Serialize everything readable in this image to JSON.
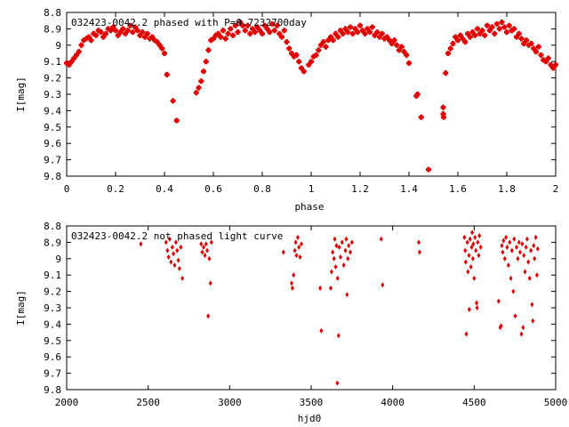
{
  "chart_data": [
    {
      "type": "scatter",
      "title": "032423-0042.2 phased with P=0.7232700day",
      "xlabel": "phase",
      "ylabel": "I[mag]",
      "xlim": [
        0,
        2
      ],
      "ylim": [
        8.8,
        9.8
      ],
      "y_inverted": true,
      "xticks": [
        "0",
        "0.2",
        "0.4",
        "0.6",
        "0.8",
        "1",
        "1.2",
        "1.4",
        "1.6",
        "1.8",
        "2"
      ],
      "yticks": [
        "8.8",
        "8.9",
        "9",
        "9.1",
        "9.2",
        "9.3",
        "9.4",
        "9.5",
        "9.6",
        "9.7",
        "9.8"
      ],
      "grid": false,
      "marker_color": "#e00000",
      "points": [
        [
          0.0,
          9.11
        ],
        [
          0.01,
          9.12
        ],
        [
          0.02,
          9.1
        ],
        [
          0.03,
          9.08
        ],
        [
          0.04,
          9.06
        ],
        [
          0.05,
          9.04
        ],
        [
          0.06,
          9.0
        ],
        [
          0.07,
          8.97
        ],
        [
          0.08,
          8.96
        ],
        [
          0.09,
          8.95
        ],
        [
          0.1,
          8.97
        ],
        [
          0.11,
          8.93
        ],
        [
          0.12,
          8.94
        ],
        [
          0.13,
          8.91
        ],
        [
          0.14,
          8.92
        ],
        [
          0.15,
          8.95
        ],
        [
          0.16,
          8.93
        ],
        [
          0.17,
          8.9
        ],
        [
          0.18,
          8.91
        ],
        [
          0.19,
          8.89
        ],
        [
          0.2,
          8.91
        ],
        [
          0.21,
          8.94
        ],
        [
          0.22,
          8.92
        ],
        [
          0.23,
          8.9
        ],
        [
          0.24,
          8.93
        ],
        [
          0.25,
          8.91
        ],
        [
          0.26,
          8.88
        ],
        [
          0.27,
          8.92
        ],
        [
          0.28,
          8.89
        ],
        [
          0.29,
          8.91
        ],
        [
          0.3,
          8.94
        ],
        [
          0.31,
          8.92
        ],
        [
          0.32,
          8.95
        ],
        [
          0.33,
          8.93
        ],
        [
          0.34,
          8.96
        ],
        [
          0.35,
          8.95
        ],
        [
          0.36,
          8.97
        ],
        [
          0.37,
          8.98
        ],
        [
          0.38,
          9.0
        ],
        [
          0.39,
          9.02
        ],
        [
          0.4,
          9.05
        ],
        [
          0.41,
          9.18
        ],
        [
          0.435,
          9.34
        ],
        [
          0.45,
          9.46
        ],
        [
          0.53,
          9.29
        ],
        [
          0.54,
          9.26
        ],
        [
          0.55,
          9.22
        ],
        [
          0.56,
          9.16
        ],
        [
          0.57,
          9.1
        ],
        [
          0.58,
          9.03
        ],
        [
          0.59,
          8.97
        ],
        [
          0.6,
          8.96
        ],
        [
          0.61,
          8.94
        ],
        [
          0.62,
          8.93
        ],
        [
          0.63,
          8.95
        ],
        [
          0.64,
          8.91
        ],
        [
          0.65,
          8.96
        ],
        [
          0.66,
          8.93
        ],
        [
          0.67,
          8.9
        ],
        [
          0.68,
          8.94
        ],
        [
          0.69,
          8.88
        ],
        [
          0.7,
          8.92
        ],
        [
          0.71,
          8.86
        ],
        [
          0.72,
          8.88
        ],
        [
          0.73,
          8.91
        ],
        [
          0.74,
          8.88
        ],
        [
          0.75,
          8.93
        ],
        [
          0.76,
          8.9
        ],
        [
          0.77,
          8.92
        ],
        [
          0.78,
          8.89
        ],
        [
          0.79,
          8.91
        ],
        [
          0.8,
          8.93
        ],
        [
          0.81,
          8.88
        ],
        [
          0.82,
          8.9
        ],
        [
          0.83,
          8.92
        ],
        [
          0.84,
          8.87
        ],
        [
          0.85,
          8.91
        ],
        [
          0.86,
          8.88
        ],
        [
          0.87,
          8.93
        ],
        [
          0.88,
          8.95
        ],
        [
          0.89,
          8.91
        ],
        [
          0.9,
          8.98
        ],
        [
          0.91,
          9.02
        ],
        [
          0.92,
          9.05
        ],
        [
          0.93,
          9.07
        ],
        [
          0.94,
          9.06
        ],
        [
          0.95,
          9.1
        ],
        [
          0.96,
          9.14
        ],
        [
          0.97,
          9.16
        ],
        [
          0.99,
          9.12
        ],
        [
          1.0,
          9.1
        ],
        [
          1.01,
          9.07
        ],
        [
          1.02,
          9.06
        ],
        [
          1.03,
          9.03
        ],
        [
          1.04,
          9.0
        ],
        [
          1.05,
          8.98
        ],
        [
          1.06,
          9.01
        ],
        [
          1.07,
          8.97
        ],
        [
          1.08,
          8.95
        ],
        [
          1.09,
          8.97
        ],
        [
          1.1,
          8.93
        ],
        [
          1.11,
          8.95
        ],
        [
          1.12,
          8.91
        ],
        [
          1.13,
          8.93
        ],
        [
          1.14,
          8.9
        ],
        [
          1.15,
          8.92
        ],
        [
          1.16,
          8.89
        ],
        [
          1.17,
          8.93
        ],
        [
          1.18,
          8.9
        ],
        [
          1.19,
          8.92
        ],
        [
          1.2,
          8.88
        ],
        [
          1.21,
          8.91
        ],
        [
          1.22,
          8.93
        ],
        [
          1.23,
          8.9
        ],
        [
          1.24,
          8.92
        ],
        [
          1.25,
          8.89
        ],
        [
          1.26,
          8.94
        ],
        [
          1.27,
          8.92
        ],
        [
          1.28,
          8.95
        ],
        [
          1.29,
          8.93
        ],
        [
          1.3,
          8.96
        ],
        [
          1.31,
          8.95
        ],
        [
          1.32,
          8.97
        ],
        [
          1.33,
          8.99
        ],
        [
          1.34,
          8.97
        ],
        [
          1.35,
          9.0
        ],
        [
          1.36,
          9.03
        ],
        [
          1.37,
          9.01
        ],
        [
          1.38,
          9.04
        ],
        [
          1.39,
          9.06
        ],
        [
          1.4,
          9.11
        ],
        [
          1.43,
          9.31
        ],
        [
          1.435,
          9.3
        ],
        [
          1.45,
          9.44
        ],
        [
          1.48,
          9.76
        ],
        [
          1.54,
          9.42
        ],
        [
          1.542,
          9.44
        ],
        [
          1.54,
          9.38
        ],
        [
          1.55,
          9.17
        ],
        [
          1.56,
          9.05
        ],
        [
          1.57,
          9.02
        ],
        [
          1.58,
          8.99
        ],
        [
          1.59,
          8.95
        ],
        [
          1.6,
          8.97
        ],
        [
          1.61,
          8.94
        ],
        [
          1.62,
          8.96
        ],
        [
          1.63,
          8.98
        ],
        [
          1.64,
          8.93
        ],
        [
          1.65,
          8.95
        ],
        [
          1.66,
          8.92
        ],
        [
          1.67,
          8.94
        ],
        [
          1.68,
          8.9
        ],
        [
          1.69,
          8.93
        ],
        [
          1.7,
          8.91
        ],
        [
          1.71,
          8.94
        ],
        [
          1.72,
          8.88
        ],
        [
          1.73,
          8.91
        ],
        [
          1.74,
          8.89
        ],
        [
          1.75,
          8.93
        ],
        [
          1.76,
          8.87
        ],
        [
          1.77,
          8.9
        ],
        [
          1.78,
          8.86
        ],
        [
          1.79,
          8.89
        ],
        [
          1.8,
          8.92
        ],
        [
          1.81,
          8.88
        ],
        [
          1.82,
          8.91
        ],
        [
          1.83,
          8.9
        ],
        [
          1.84,
          8.95
        ],
        [
          1.85,
          8.93
        ],
        [
          1.86,
          8.96
        ],
        [
          1.87,
          8.99
        ],
        [
          1.88,
          8.97
        ],
        [
          1.89,
          9.0
        ],
        [
          1.9,
          8.99
        ],
        [
          1.91,
          9.02
        ],
        [
          1.92,
          9.04
        ],
        [
          1.93,
          9.01
        ],
        [
          1.94,
          9.06
        ],
        [
          1.95,
          9.09
        ],
        [
          1.96,
          9.1
        ],
        [
          1.97,
          9.08
        ],
        [
          1.98,
          9.12
        ],
        [
          1.99,
          9.14
        ],
        [
          2.0,
          9.12
        ]
      ]
    },
    {
      "type": "scatter",
      "title": "032423-0042.2 not phased light curve",
      "xlabel": "hjd0",
      "ylabel": "I[mag]",
      "xlim": [
        2000,
        5000
      ],
      "ylim": [
        8.8,
        9.8
      ],
      "y_inverted": true,
      "xticks": [
        "2000",
        "2500",
        "3000",
        "3500",
        "4000",
        "4500",
        "5000"
      ],
      "yticks": [
        "8.8",
        "8.9",
        "9",
        "9.1",
        "9.2",
        "9.3",
        "9.4",
        "9.5",
        "9.6",
        "9.7",
        "9.8"
      ],
      "grid": false,
      "marker_color": "#e00000",
      "points": [
        [
          2455,
          8.91
        ],
        [
          2610,
          8.9
        ],
        [
          2618,
          8.95
        ],
        [
          2625,
          8.99
        ],
        [
          2632,
          8.88
        ],
        [
          2640,
          9.02
        ],
        [
          2648,
          8.93
        ],
        [
          2655,
          8.97
        ],
        [
          2662,
          9.04
        ],
        [
          2670,
          8.9
        ],
        [
          2678,
          8.95
        ],
        [
          2685,
          9.01
        ],
        [
          2692,
          9.06
        ],
        [
          2700,
          8.93
        ],
        [
          2710,
          9.12
        ],
        [
          2825,
          8.91
        ],
        [
          2832,
          8.96
        ],
        [
          2840,
          8.93
        ],
        [
          2848,
          8.98
        ],
        [
          2855,
          8.91
        ],
        [
          2862,
          8.95
        ],
        [
          2868,
          9.35
        ],
        [
          2875,
          9.0
        ],
        [
          2882,
          9.15
        ],
        [
          2888,
          8.9
        ],
        [
          3330,
          8.96
        ],
        [
          3380,
          9.15
        ],
        [
          3385,
          9.18
        ],
        [
          3392,
          9.1
        ],
        [
          3400,
          8.95
        ],
        [
          3405,
          8.9
        ],
        [
          3410,
          8.98
        ],
        [
          3418,
          8.87
        ],
        [
          3425,
          8.93
        ],
        [
          3432,
          8.99
        ],
        [
          3440,
          8.91
        ],
        [
          3555,
          9.18
        ],
        [
          3562,
          9.44
        ],
        [
          3620,
          9.18
        ],
        [
          3625,
          9.08
        ],
        [
          3632,
          8.96
        ],
        [
          3640,
          9.0
        ],
        [
          3645,
          8.88
        ],
        [
          3650,
          9.05
        ],
        [
          3655,
          8.92
        ],
        [
          3660,
          9.76
        ],
        [
          3662,
          9.12
        ],
        [
          3668,
          9.47
        ],
        [
          3672,
          8.93
        ],
        [
          3680,
          8.99
        ],
        [
          3690,
          8.9
        ],
        [
          3700,
          9.04
        ],
        [
          3710,
          8.95
        ],
        [
          3715,
          8.88
        ],
        [
          3720,
          9.22
        ],
        [
          3725,
          9.0
        ],
        [
          3730,
          8.92
        ],
        [
          3740,
          8.96
        ],
        [
          3750,
          8.9
        ],
        [
          3930,
          8.88
        ],
        [
          3938,
          9.16
        ],
        [
          4160,
          8.9
        ],
        [
          4165,
          8.96
        ],
        [
          4440,
          8.87
        ],
        [
          4445,
          8.95
        ],
        [
          4448,
          9.02
        ],
        [
          4452,
          9.46
        ],
        [
          4458,
          8.9
        ],
        [
          4462,
          9.08
        ],
        [
          4468,
          8.98
        ],
        [
          4470,
          9.31
        ],
        [
          4475,
          8.88
        ],
        [
          4480,
          9.05
        ],
        [
          4485,
          8.93
        ],
        [
          4488,
          8.84
        ],
        [
          4492,
          9.0
        ],
        [
          4495,
          8.91
        ],
        [
          4500,
          9.12
        ],
        [
          4505,
          8.87
        ],
        [
          4510,
          8.95
        ],
        [
          4515,
          9.27
        ],
        [
          4518,
          9.3
        ],
        [
          4522,
          8.9
        ],
        [
          4528,
          8.98
        ],
        [
          4532,
          8.86
        ],
        [
          4540,
          8.93
        ],
        [
          4650,
          9.26
        ],
        [
          4660,
          9.42
        ],
        [
          4665,
          9.41
        ],
        [
          4670,
          8.92
        ],
        [
          4675,
          8.96
        ],
        [
          4680,
          8.89
        ],
        [
          4688,
          9.0
        ],
        [
          4695,
          8.87
        ],
        [
          4702,
          8.93
        ],
        [
          4710,
          9.04
        ],
        [
          4718,
          8.9
        ],
        [
          4725,
          9.12
        ],
        [
          4732,
          8.95
        ],
        [
          4740,
          9.2
        ],
        [
          4745,
          8.88
        ],
        [
          4752,
          9.35
        ],
        [
          4760,
          8.93
        ],
        [
          4768,
          9.0
        ],
        [
          4775,
          8.9
        ],
        [
          4782,
          8.96
        ],
        [
          4790,
          9.46
        ],
        [
          4795,
          8.91
        ],
        [
          4800,
          9.42
        ],
        [
          4805,
          8.98
        ],
        [
          4812,
          9.08
        ],
        [
          4818,
          8.93
        ],
        [
          4825,
          8.88
        ],
        [
          4832,
          9.02
        ],
        [
          4840,
          9.12
        ],
        [
          4848,
          8.95
        ],
        [
          4855,
          9.28
        ],
        [
          4860,
          9.38
        ],
        [
          4865,
          8.92
        ],
        [
          4870,
          9.0
        ],
        [
          4878,
          8.87
        ],
        [
          4885,
          9.1
        ],
        [
          4890,
          8.94
        ]
      ]
    }
  ]
}
